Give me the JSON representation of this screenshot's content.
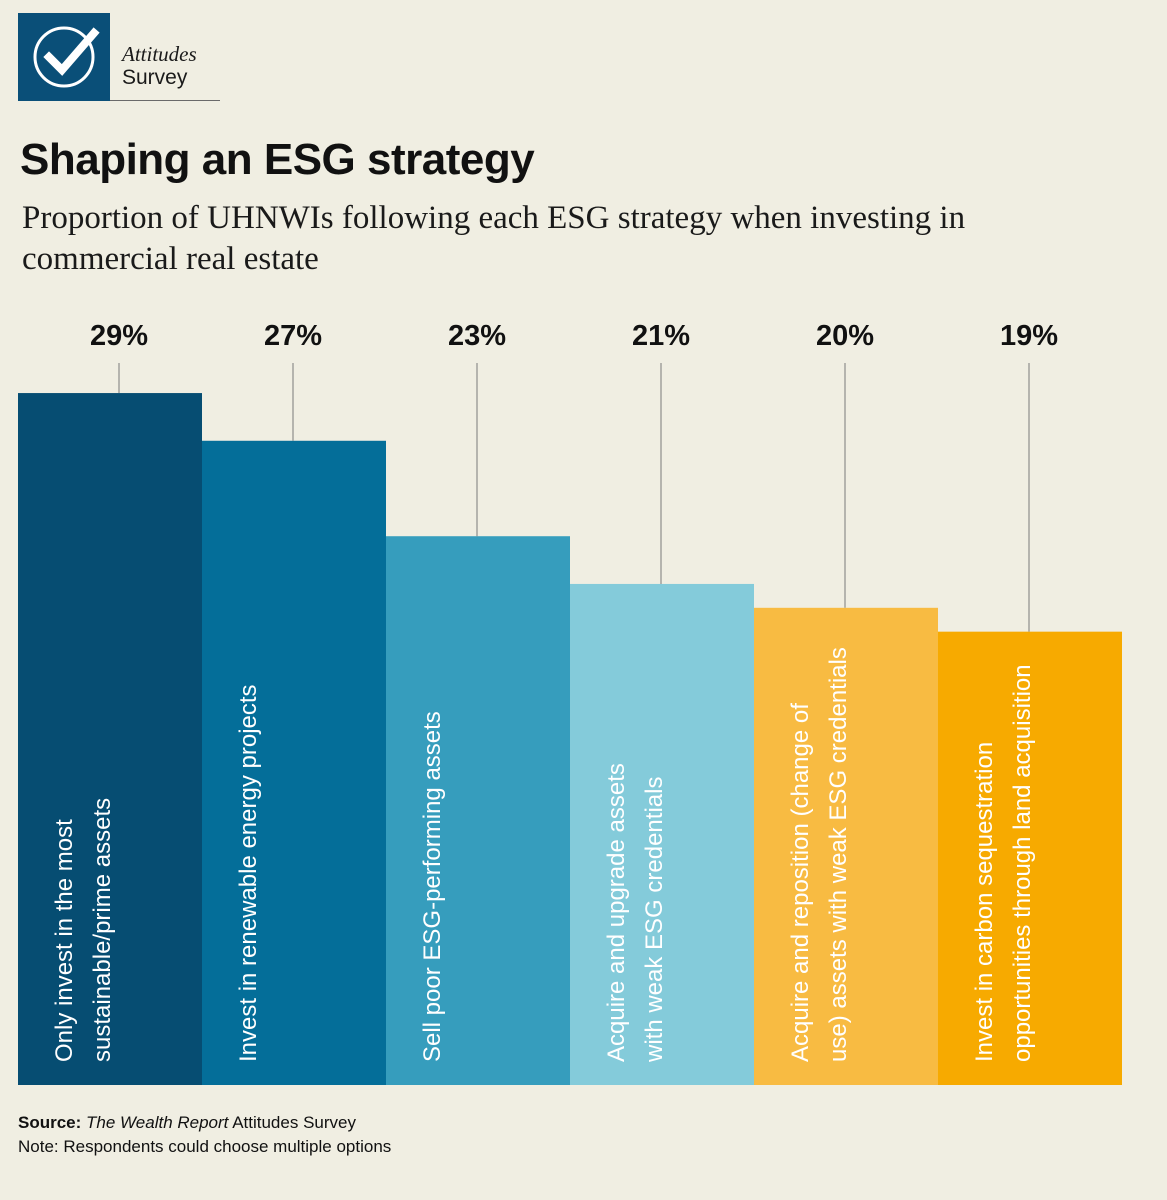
{
  "header": {
    "logo_line1": "Attitudes",
    "logo_line2": "Survey",
    "logo_icon": "checkmark-circle-icon"
  },
  "title": "Shaping an ESG strategy",
  "subtitle": "Proportion of UHNWIs following each ESG strategy when investing in commercial real estate",
  "chart_data": {
    "type": "bar",
    "categories": [
      "Only invest in the most sustainable/prime assets",
      "Invest in renewable energy projects",
      "Sell poor ESG-performing assets",
      "Acquire and upgrade assets with weak ESG credentials",
      "Acquire and reposition (change of use) assets with weak ESG credentials",
      "Invest in carbon sequestration opportunities through land acquisition"
    ],
    "category_lines": [
      [
        "Only invest in the most",
        "sustainable/prime assets"
      ],
      [
        "Invest in renewable energy projects"
      ],
      [
        "Sell poor ESG-performing assets"
      ],
      [
        "Acquire and upgrade assets",
        "with weak ESG credentials"
      ],
      [
        "Acquire and reposition (change of",
        "use) assets with weak ESG credentials"
      ],
      [
        "Invest in carbon sequestration",
        "opportunities through land acquisition"
      ]
    ],
    "values": [
      29,
      27,
      23,
      21,
      20,
      19
    ],
    "value_labels": [
      "29%",
      "27%",
      "23%",
      "21%",
      "20%",
      "19%"
    ],
    "colors": [
      "#064d72",
      "#046e99",
      "#369dbd",
      "#84cbda",
      "#f8bb42",
      "#f7aa00"
    ],
    "unit": "%",
    "grid": false,
    "legend": "none"
  },
  "footer": {
    "source_label": "Source:",
    "source_title": "The Wealth Report",
    "source_rest": " Attitudes Survey",
    "note": "Note: Respondents could choose multiple options"
  }
}
